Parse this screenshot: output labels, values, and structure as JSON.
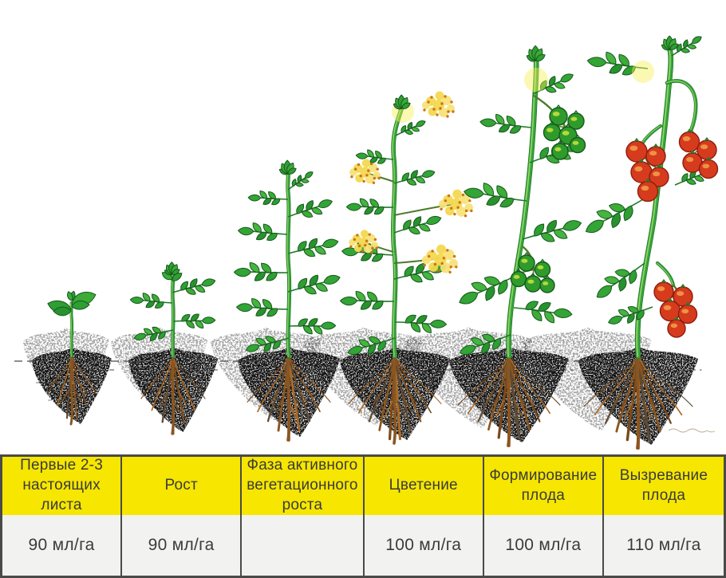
{
  "figure_title": "",
  "stages": [
    {
      "name": "Первые 2-3 настоящих листа",
      "dose": "90 мл/га",
      "illustration": "seedling-illustration"
    },
    {
      "name": "Рост",
      "dose": "90 мл/га",
      "illustration": "young-plant-illustration"
    },
    {
      "name": "Фаза активного вегетационного роста",
      "dose": "",
      "illustration": "vegetative-growth-plant-illustration"
    },
    {
      "name": "Цветение",
      "dose": "100 мл/га",
      "illustration": "flowering-plant-illustration"
    },
    {
      "name": "Формирование плода",
      "dose": "100 мл/га",
      "illustration": "green-fruit-plant-illustration"
    },
    {
      "name": "Вызревание плода",
      "dose": "110 мл/га",
      "illustration": "ripe-fruit-plant-illustration"
    }
  ],
  "colors": {
    "header_yellow": "#F6E600",
    "value_row_bg": "#F2F2F0",
    "table_border": "#4A4A48",
    "table_text": "#3B3B3A",
    "leaf_green": "#2F9E33",
    "stem_green": "#3AA23E",
    "flower_yellow": "#F6DF6E",
    "flower_dot_orange": "#C9741C",
    "tomato_green": "#2F9B2C",
    "tomato_red": "#D63B1E",
    "root_brown": "#A96A28",
    "soil_gray": "#4A4A4A"
  }
}
